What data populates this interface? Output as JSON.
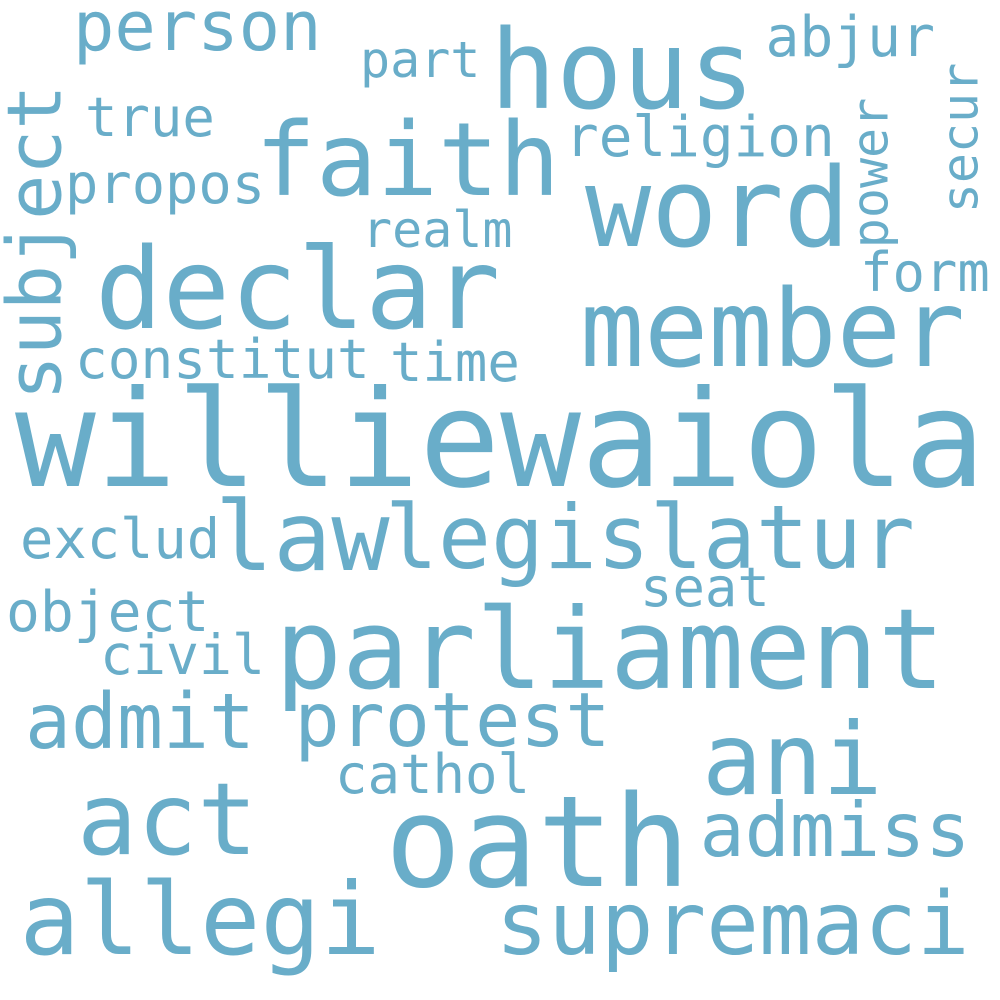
{
  "cloud": {
    "color": "#69adc9",
    "words": [
      "williewaiola",
      "oath",
      "parliament",
      "legislatur",
      "declar",
      "faith",
      "hous",
      "law",
      "member",
      "word",
      "allegi",
      "supremaci",
      "act",
      "ani",
      "protest",
      "person",
      "subject",
      "admiss",
      "admit",
      "constitut",
      "religion",
      "cathol",
      "propos",
      "power",
      "object",
      "exclud",
      "civil",
      "form",
      "realm",
      "true",
      "time",
      "secur",
      "part",
      "abjur",
      "seat"
    ]
  }
}
